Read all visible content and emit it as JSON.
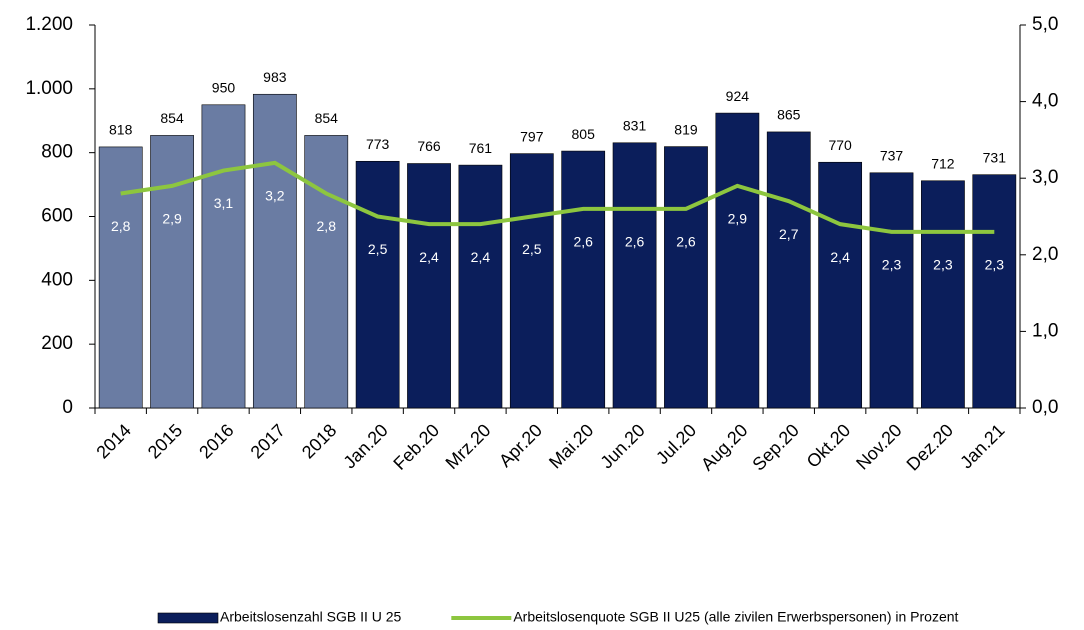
{
  "chart_data": {
    "type": "bar",
    "categories": [
      "2014",
      "2015",
      "2016",
      "2017",
      "2018",
      "Jan.20",
      "Feb.20",
      "Mrz.20",
      "Apr.20",
      "Mai.20",
      "Jun.20",
      "Jul.20",
      "Aug.20",
      "Sep.20",
      "Okt.20",
      "Nov.20",
      "Dez.20",
      "Jan.21"
    ],
    "series": [
      {
        "name": "Arbeitslosenzahl SGB II U 25",
        "type": "bar",
        "color": "#0b1e5b",
        "colors": [
          "#6a7ca3",
          "#6a7ca3",
          "#6a7ca3",
          "#6a7ca3",
          "#6a7ca3",
          "#0b1e5b",
          "#0b1e5b",
          "#0b1e5b",
          "#0b1e5b",
          "#0b1e5b",
          "#0b1e5b",
          "#0b1e5b",
          "#0b1e5b",
          "#0b1e5b",
          "#0b1e5b",
          "#0b1e5b",
          "#0b1e5b",
          "#0b1e5b"
        ],
        "values": [
          818,
          854,
          950,
          983,
          854,
          773,
          766,
          761,
          797,
          805,
          831,
          819,
          924,
          865,
          770,
          737,
          712,
          731
        ]
      },
      {
        "name": "Arbeitslosenquote SGB II U25 (alle zivilen Erwerbspersonen) in Prozent",
        "type": "line",
        "axis": "y2",
        "color": "#8dc63f",
        "values": [
          2.8,
          2.9,
          3.1,
          3.2,
          2.8,
          2.5,
          2.4,
          2.4,
          2.5,
          2.6,
          2.6,
          2.6,
          2.9,
          2.7,
          2.4,
          2.3,
          2.3,
          2.3
        ],
        "value_labels": [
          "2,8",
          "2,9",
          "3,1",
          "3,2",
          "2,8",
          "2,5",
          "2,4",
          "2,4",
          "2,5",
          "2,6",
          "2,6",
          "2,6",
          "2,9",
          "2,7",
          "2,4",
          "2,3",
          "2,3",
          "2,3"
        ]
      }
    ],
    "ylim": [
      0,
      1200
    ],
    "yticks": [
      0,
      200,
      400,
      600,
      800,
      {
        "value": 1000,
        "label": "1.000"
      },
      {
        "value": 1200,
        "label": "1.200"
      }
    ],
    "y2lim": [
      0,
      5
    ],
    "y2ticks": [
      {
        "value": 0,
        "label": "0,0"
      },
      {
        "value": 1,
        "label": "1,0"
      },
      {
        "value": 2,
        "label": "2,0"
      },
      {
        "value": 3,
        "label": "3,0"
      },
      {
        "value": 4,
        "label": "4,0"
      },
      {
        "value": 5,
        "label": "5,0"
      }
    ],
    "legend": "bottom"
  }
}
